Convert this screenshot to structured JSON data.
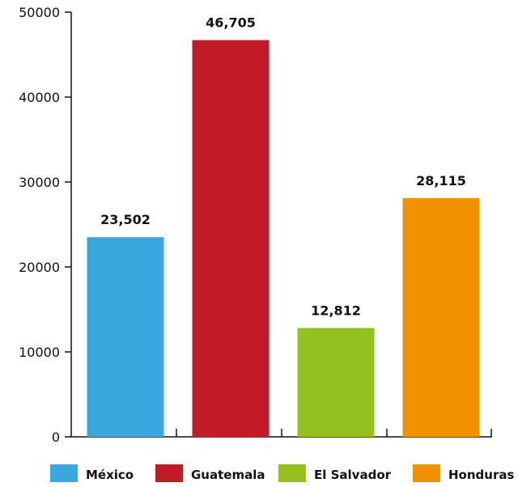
{
  "chart_data": {
    "type": "bar",
    "categories": [
      "México",
      "Guatemala",
      "El Salvador",
      "Honduras"
    ],
    "values": [
      23502,
      46705,
      12812,
      28115
    ],
    "data_labels": [
      "23,502",
      "46,705",
      "12,812",
      "28,115"
    ],
    "colors": [
      "#3aa7df",
      "#c01b27",
      "#95c11f",
      "#f39200"
    ],
    "ylim": [
      0,
      50000
    ],
    "yticks": [
      "0",
      "10000",
      "20000",
      "30000",
      "40000",
      "50000"
    ],
    "ytick_values": [
      0,
      10000,
      20000,
      30000,
      40000,
      50000
    ],
    "title": "",
    "xlabel": "",
    "ylabel": "",
    "grid": false,
    "legend_position": "bottom"
  }
}
